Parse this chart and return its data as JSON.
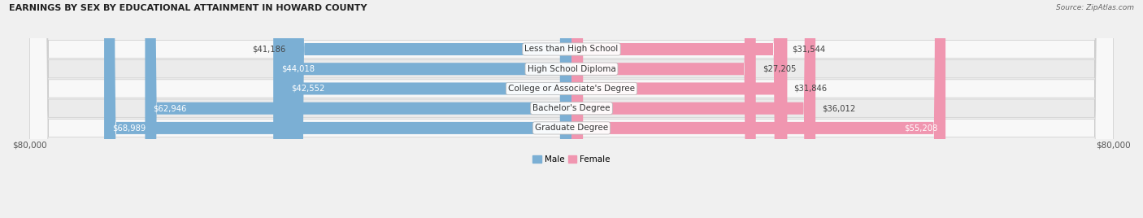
{
  "title": "EARNINGS BY SEX BY EDUCATIONAL ATTAINMENT IN HOWARD COUNTY",
  "source": "Source: ZipAtlas.com",
  "categories": [
    "Less than High School",
    "High School Diploma",
    "College or Associate's Degree",
    "Bachelor's Degree",
    "Graduate Degree"
  ],
  "male_values": [
    41186,
    44018,
    42552,
    62946,
    68989
  ],
  "female_values": [
    31544,
    27205,
    31846,
    36012,
    55208
  ],
  "male_color": "#7bafd4",
  "female_color": "#f096b0",
  "label_dark": "#444444",
  "label_light": "#ffffff",
  "bg_color": "#f0f0f0",
  "row_bg_light": "#f8f8f8",
  "row_bg_dark": "#ebebeb",
  "max_value": 80000,
  "bar_height": 0.62,
  "inside_threshold": 0.52,
  "title_fontsize": 8,
  "tick_fontsize": 7.5,
  "bar_fontsize": 7.2,
  "cat_fontsize": 7.5
}
